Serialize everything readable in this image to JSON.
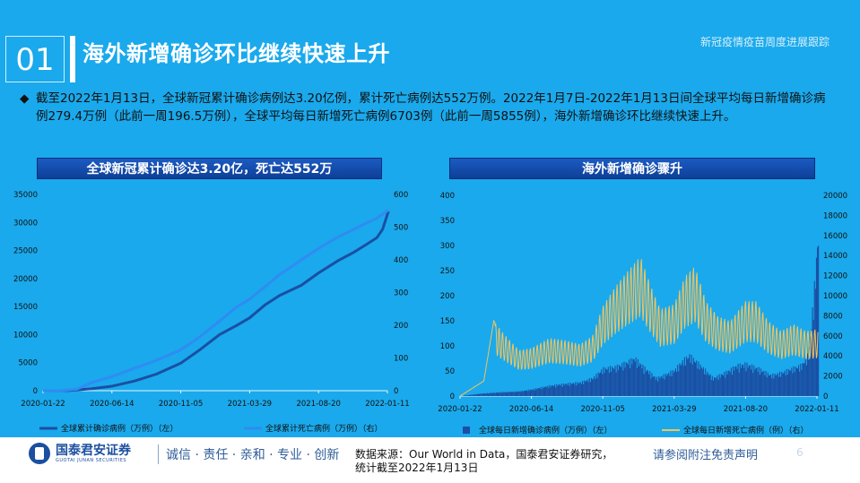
{
  "header": {
    "number": "01",
    "title": "海外新增确诊环比继续快速上升",
    "subtitle": "新冠疫情疫苗周度进展跟踪"
  },
  "bullet": {
    "marker": "◆",
    "text": "截至2022年1月13日，全球新冠累计确诊病例达3.20亿例，累计死亡病例达552万例。2022年1月7日-2022年1月13日间全球平均每日新增确诊病例279.4万例（此前一周196.5万例），全球平均每日新增死亡病例6703例（此前一周5855例），海外新增确诊环比继续快速上升。"
  },
  "footer": {
    "logo_cn": "国泰君安证券",
    "logo_en": "GUOTAI JUNAN SECURITIES",
    "motto": "诚信 · 责任 · 亲和 · 专业 · 创新",
    "source_line1": "数据来源：Our World in Data，国泰君安证券研究，",
    "source_line2": "统计截至2022年1月13日",
    "disclaimer": "请参阅附注免责声明",
    "page": "6"
  },
  "colors": {
    "background": "#1aa9ec",
    "series_dark": "#1a4fa3",
    "series_light": "#2f8cf2",
    "series_yellow": "#f5c45a",
    "title_bar": "#1b5bc2"
  },
  "chart_data": [
    {
      "type": "line",
      "title": "全球新冠累计确诊达3.20亿，死亡达552万",
      "x_ticks": [
        "2020-01-22",
        "2020-06-14",
        "2020-11-05",
        "2021-03-29",
        "2021-08-20",
        "2022-01-11"
      ],
      "y_left_ticks": [
        0,
        5000,
        10000,
        15000,
        20000,
        25000,
        30000,
        35000
      ],
      "y_right_ticks": [
        0,
        100,
        200,
        300,
        400,
        500,
        600
      ],
      "ylim_left": [
        0,
        35000
      ],
      "ylim_right": [
        0,
        600
      ],
      "legend_position": "bottom",
      "series": [
        {
          "name": "全球累计确诊病例（万例）（左）",
          "axis": "left",
          "color": "#1a4fa3",
          "x": [
            "2020-01-22",
            "2020-03-15",
            "2020-05-01",
            "2020-06-14",
            "2020-08-01",
            "2020-09-15",
            "2020-11-05",
            "2020-12-15",
            "2021-01-25",
            "2021-03-01",
            "2021-03-29",
            "2021-04-30",
            "2021-05-31",
            "2021-07-15",
            "2021-08-20",
            "2021-09-30",
            "2021-10-31",
            "2021-11-30",
            "2021-12-20",
            "2022-01-01",
            "2022-01-13"
          ],
          "values": [
            0,
            15,
            330,
            800,
            1750,
            2950,
            4900,
            7300,
            10000,
            11600,
            13000,
            15300,
            17000,
            18800,
            21000,
            23200,
            24600,
            26200,
            27300,
            28800,
            32000
          ]
        },
        {
          "name": "全球累计死亡病例（万例）（右）",
          "axis": "right",
          "color": "#2f8cf2",
          "x": [
            "2020-01-22",
            "2020-03-01",
            "2020-04-01",
            "2020-05-01",
            "2020-06-14",
            "2020-08-01",
            "2020-09-15",
            "2020-11-05",
            "2020-12-15",
            "2021-01-25",
            "2021-03-01",
            "2021-03-29",
            "2021-04-30",
            "2021-05-31",
            "2021-07-15",
            "2021-08-20",
            "2021-09-30",
            "2021-10-31",
            "2021-11-30",
            "2021-12-20",
            "2022-01-13"
          ],
          "values": [
            0,
            0.3,
            4.5,
            24,
            43,
            69,
            93,
            125,
            165,
            213,
            255,
            280,
            318,
            355,
            400,
            435,
            470,
            492,
            514,
            527,
            552
          ]
        }
      ]
    },
    {
      "type": "bar",
      "title": "海外新增确诊骤升",
      "x_ticks": [
        "2020-01-22",
        "2020-06-14",
        "2020-11-05",
        "2021-03-29",
        "2021-08-20",
        "2022-01-11"
      ],
      "y_left_ticks": [
        0,
        50,
        100,
        150,
        200,
        250,
        300,
        350,
        400
      ],
      "y_right_ticks": [
        0,
        2000,
        4000,
        6000,
        8000,
        10000,
        12000,
        14000,
        16000,
        18000,
        20000
      ],
      "ylim_left": [
        0,
        400
      ],
      "ylim_right": [
        0,
        20000
      ],
      "legend_position": "bottom",
      "series": [
        {
          "name": "全球每日新增确诊病例（万例）（左）",
          "axis": "left",
          "style": "bar",
          "color": "#1a4fa3",
          "x": [
            "2020-01-22",
            "2020-03-01",
            "2020-04-10",
            "2020-05-20",
            "2020-06-14",
            "2020-07-20",
            "2020-08-20",
            "2020-09-20",
            "2020-10-15",
            "2020-11-05",
            "2020-12-01",
            "2020-12-20",
            "2021-01-08",
            "2021-01-25",
            "2021-02-20",
            "2021-03-10",
            "2021-03-29",
            "2021-04-15",
            "2021-04-28",
            "2021-05-20",
            "2021-06-15",
            "2021-07-10",
            "2021-08-01",
            "2021-08-20",
            "2021-09-15",
            "2021-10-10",
            "2021-11-01",
            "2021-11-25",
            "2021-12-10",
            "2021-12-25",
            "2022-01-05",
            "2022-01-13"
          ],
          "values": [
            0,
            5,
            8,
            10,
            14,
            22,
            26,
            29,
            38,
            58,
            62,
            70,
            80,
            62,
            38,
            45,
            55,
            75,
            86,
            65,
            38,
            50,
            64,
            68,
            58,
            44,
            50,
            60,
            65,
            90,
            230,
            350
          ]
        },
        {
          "name": "全球每日新增死亡病例（例）（右）",
          "axis": "right",
          "style": "line",
          "color": "#f5c45a",
          "x": [
            "2020-01-22",
            "2020-03-10",
            "2020-03-30",
            "2020-04-20",
            "2020-05-20",
            "2020-06-14",
            "2020-07-20",
            "2020-08-20",
            "2020-09-20",
            "2020-10-15",
            "2020-11-05",
            "2020-12-01",
            "2020-12-25",
            "2021-01-20",
            "2021-02-10",
            "2021-03-01",
            "2021-03-29",
            "2021-04-20",
            "2021-05-10",
            "2021-06-01",
            "2021-06-25",
            "2021-07-20",
            "2021-08-20",
            "2021-09-10",
            "2021-10-05",
            "2021-10-31",
            "2021-11-25",
            "2021-12-20",
            "2022-01-13"
          ],
          "values": [
            0,
            1500,
            7500,
            6200,
            4600,
            4800,
            5800,
            5600,
            5200,
            6000,
            9000,
            11000,
            12500,
            14000,
            11000,
            8700,
            9200,
            12000,
            13000,
            9500,
            8000,
            7500,
            9500,
            9500,
            7500,
            6500,
            7200,
            6500,
            6700
          ]
        }
      ]
    }
  ]
}
